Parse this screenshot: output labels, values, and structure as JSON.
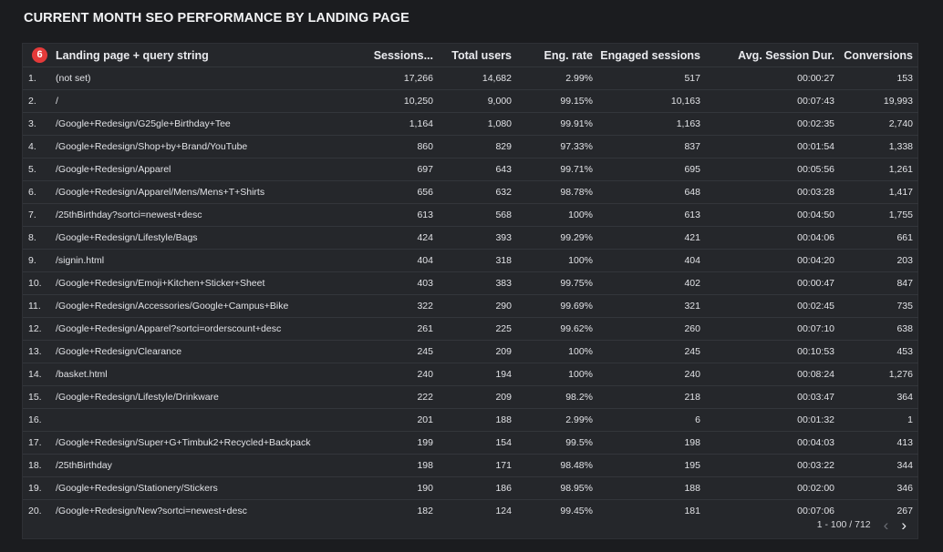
{
  "title": "CURRENT MONTH SEO PERFORMANCE BY LANDING PAGE",
  "table": {
    "badge": "6",
    "columns": [
      "Landing page + query string",
      "Sessions...",
      "Total users",
      "Eng. rate",
      "Engaged sessions",
      "Avg. Session Dur.",
      "Conversions"
    ],
    "rows": [
      [
        "1.",
        "(not set)",
        "17,266",
        "14,682",
        "2.99%",
        "517",
        "00:00:27",
        "153"
      ],
      [
        "2.",
        "/",
        "10,250",
        "9,000",
        "99.15%",
        "10,163",
        "00:07:43",
        "19,993"
      ],
      [
        "3.",
        "/Google+Redesign/G25gle+Birthday+Tee",
        "1,164",
        "1,080",
        "99.91%",
        "1,163",
        "00:02:35",
        "2,740"
      ],
      [
        "4.",
        "/Google+Redesign/Shop+by+Brand/YouTube",
        "860",
        "829",
        "97.33%",
        "837",
        "00:01:54",
        "1,338"
      ],
      [
        "5.",
        "/Google+Redesign/Apparel",
        "697",
        "643",
        "99.71%",
        "695",
        "00:05:56",
        "1,261"
      ],
      [
        "6.",
        "/Google+Redesign/Apparel/Mens/Mens+T+Shirts",
        "656",
        "632",
        "98.78%",
        "648",
        "00:03:28",
        "1,417"
      ],
      [
        "7.",
        "/25thBirthday?sortci=newest+desc",
        "613",
        "568",
        "100%",
        "613",
        "00:04:50",
        "1,755"
      ],
      [
        "8.",
        "/Google+Redesign/Lifestyle/Bags",
        "424",
        "393",
        "99.29%",
        "421",
        "00:04:06",
        "661"
      ],
      [
        "9.",
        "/signin.html",
        "404",
        "318",
        "100%",
        "404",
        "00:04:20",
        "203"
      ],
      [
        "10.",
        "/Google+Redesign/Emoji+Kitchen+Sticker+Sheet",
        "403",
        "383",
        "99.75%",
        "402",
        "00:00:47",
        "847"
      ],
      [
        "11.",
        "/Google+Redesign/Accessories/Google+Campus+Bike",
        "322",
        "290",
        "99.69%",
        "321",
        "00:02:45",
        "735"
      ],
      [
        "12.",
        "/Google+Redesign/Apparel?sortci=orderscount+desc",
        "261",
        "225",
        "99.62%",
        "260",
        "00:07:10",
        "638"
      ],
      [
        "13.",
        "/Google+Redesign/Clearance",
        "245",
        "209",
        "100%",
        "245",
        "00:10:53",
        "453"
      ],
      [
        "14.",
        "/basket.html",
        "240",
        "194",
        "100%",
        "240",
        "00:08:24",
        "1,276"
      ],
      [
        "15.",
        "/Google+Redesign/Lifestyle/Drinkware",
        "222",
        "209",
        "98.2%",
        "218",
        "00:03:47",
        "364"
      ],
      [
        "16.",
        "",
        "201",
        "188",
        "2.99%",
        "6",
        "00:01:32",
        "1"
      ],
      [
        "17.",
        "/Google+Redesign/Super+G+Timbuk2+Recycled+Backpack",
        "199",
        "154",
        "99.5%",
        "198",
        "00:04:03",
        "413"
      ],
      [
        "18.",
        "/25thBirthday",
        "198",
        "171",
        "98.48%",
        "195",
        "00:03:22",
        "344"
      ],
      [
        "19.",
        "/Google+Redesign/Stationery/Stickers",
        "190",
        "186",
        "98.95%",
        "188",
        "00:02:00",
        "346"
      ],
      [
        "20.",
        "/Google+Redesign/New?sortci=newest+desc",
        "182",
        "124",
        "99.45%",
        "181",
        "00:07:06",
        "267"
      ]
    ]
  },
  "pagination": {
    "range": "1 - 100 / 712",
    "prev_glyph": "‹",
    "next_glyph": "›"
  }
}
